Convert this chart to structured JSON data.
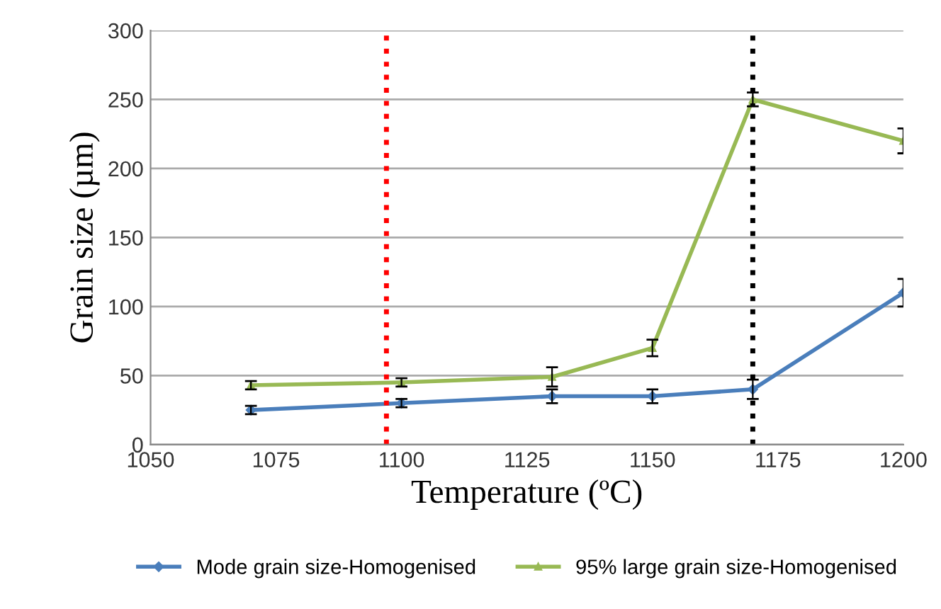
{
  "chart_data": {
    "type": "line",
    "xlabel": "Temperature (ºC)",
    "ylabel": "Grain size (µm)",
    "x": [
      1070,
      1100,
      1130,
      1150,
      1170,
      1200
    ],
    "series": [
      {
        "name": "Mode grain size-Homogenised",
        "color": "#4a7ebb",
        "marker": "diamond",
        "values": [
          25,
          30,
          35,
          35,
          40,
          110
        ],
        "errors": [
          3,
          3,
          5,
          5,
          7,
          10
        ]
      },
      {
        "name": "95% large grain size-Homogenised",
        "color": "#98b954",
        "marker": "triangle",
        "values": [
          43,
          45,
          49,
          70,
          250,
          220
        ],
        "errors": [
          3,
          3,
          7,
          6,
          5,
          9
        ]
      }
    ],
    "xlim": [
      1050,
      1200
    ],
    "xticks": [
      1050,
      1075,
      1100,
      1125,
      1150,
      1175,
      1200
    ],
    "ylim": [
      0,
      300
    ],
    "yticks": [
      0,
      50,
      100,
      150,
      200,
      250,
      300
    ],
    "ref_lines": [
      {
        "axis": "x",
        "value": 1097,
        "label": null,
        "color": "#ff0000",
        "line_style": "dotted"
      },
      {
        "axis": "x",
        "value": 1170,
        "label": null,
        "color": "#000000",
        "line_style": "dotted"
      }
    ],
    "grid": "y",
    "legend": "bottom",
    "line_style": "solid"
  }
}
